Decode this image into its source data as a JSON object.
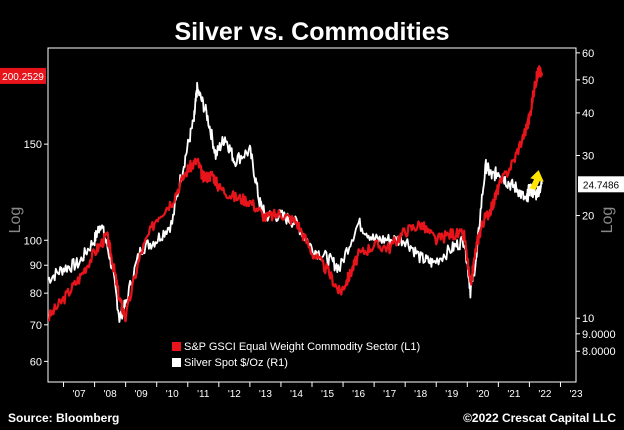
{
  "colors": {
    "background": "#000000",
    "series_red": "#e8141b",
    "series_white": "#ffffff",
    "axis": "#ffffff",
    "arrow": "#ffe600",
    "tag_red": "#e8141b"
  },
  "chart_data": {
    "type": "line",
    "title": "Silver vs. Commodities",
    "left_axis": {
      "label": "Log",
      "scale": "log",
      "ticks": [
        60,
        70,
        80,
        90,
        100,
        150
      ],
      "range": [
        55,
        225
      ]
    },
    "right_axis": {
      "label": "Log",
      "scale": "log",
      "ticks": [
        "60",
        "50",
        "40",
        "30",
        "20",
        "10",
        "9.0000",
        "8.0000"
      ],
      "tick_values": [
        60,
        50,
        40,
        30,
        20,
        10,
        9,
        8
      ],
      "range": [
        6.5,
        62
      ]
    },
    "x_axis": {
      "ticks": [
        "'07",
        "'08",
        "'09",
        "'10",
        "'11",
        "'12",
        "'13",
        "'14",
        "'15",
        "'16",
        "'17",
        "'18",
        "'19",
        "'20",
        "'21",
        "'22",
        "'23"
      ],
      "start_year": 2006.5,
      "end_year": 2023.5
    },
    "last_value_tags": {
      "left": "200.2529",
      "right": "24.7486"
    },
    "legend": [
      "S&P GSCI Equal Weight Commodity Sector  (L1)",
      "Silver Spot $/Oz  (R1)"
    ],
    "series": [
      {
        "name": "S&P GSCI Equal Weight Commodity Sector  (L1)",
        "axis": "left",
        "x": [
          2006.5,
          2007.0,
          2007.5,
          2008.0,
          2008.4,
          2008.6,
          2008.8,
          2009.0,
          2009.5,
          2010.0,
          2010.5,
          2011.0,
          2011.3,
          2011.5,
          2011.8,
          2012.0,
          2012.5,
          2013.0,
          2013.5,
          2014.0,
          2014.5,
          2015.0,
          2015.5,
          2015.9,
          2016.2,
          2016.5,
          2017.0,
          2017.5,
          2018.0,
          2018.5,
          2019.0,
          2019.5,
          2019.9,
          2020.1,
          2020.3,
          2020.5,
          2020.8,
          2021.0,
          2021.5,
          2021.9,
          2022.0,
          2022.2,
          2022.3,
          2022.4
        ],
        "values": [
          72,
          78,
          85,
          95,
          102,
          90,
          78,
          72,
          95,
          110,
          118,
          135,
          140,
          130,
          132,
          125,
          120,
          118,
          110,
          112,
          108,
          95,
          88,
          80,
          86,
          94,
          98,
          97,
          104,
          107,
          100,
          103,
          102,
          82,
          98,
          108,
          115,
          125,
          140,
          160,
          168,
          195,
          205,
          200
        ]
      },
      {
        "name": "Silver Spot $/Oz  (R1)",
        "axis": "right",
        "x": [
          2006.5,
          2007.0,
          2007.5,
          2008.0,
          2008.2,
          2008.5,
          2008.8,
          2009.0,
          2009.5,
          2010.0,
          2010.5,
          2010.9,
          2011.2,
          2011.3,
          2011.6,
          2011.9,
          2012.2,
          2012.5,
          2013.0,
          2013.3,
          2013.5,
          2014.0,
          2014.5,
          2015.0,
          2015.5,
          2015.9,
          2016.5,
          2017.0,
          2017.5,
          2018.0,
          2018.5,
          2018.9,
          2019.5,
          2019.9,
          2020.1,
          2020.3,
          2020.6,
          2020.8,
          2021.0,
          2021.3,
          2021.6,
          2021.9,
          2022.0,
          2022.2,
          2022.4
        ],
        "values": [
          13,
          14,
          14.5,
          17,
          19,
          15,
          10,
          11,
          16,
          17,
          19,
          29,
          38,
          47,
          40,
          30,
          34,
          29,
          31,
          22,
          20,
          20,
          19,
          16,
          15,
          14,
          19,
          17,
          17,
          17,
          15,
          14.5,
          16,
          17,
          12,
          15,
          28,
          26,
          27,
          25,
          24,
          22,
          24,
          23,
          24.7
        ]
      }
    ],
    "grid": false
  },
  "annotations": {
    "arrow": "up-arrow-icon"
  },
  "footer": {
    "source": "Source: Bloomberg",
    "copyright": "©2022 Crescat Capital LLC"
  }
}
